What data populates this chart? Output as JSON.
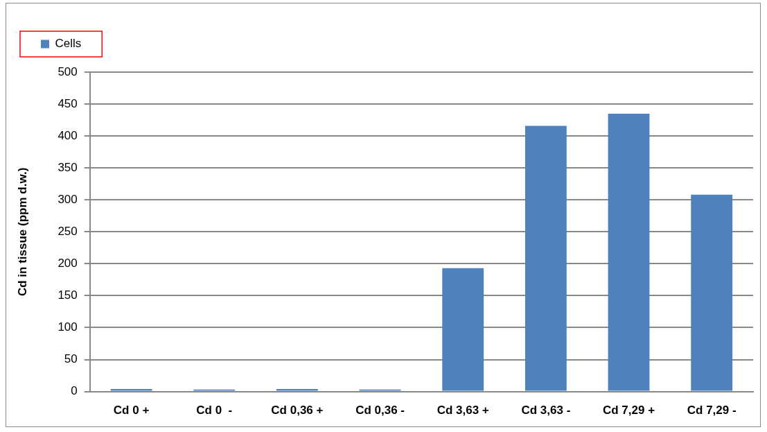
{
  "chart_data": {
    "type": "bar",
    "ylabel": "Cd in tissue (ppm d.w.)",
    "categories": [
      "Cd 0 +",
      "Cd 0  -",
      "Cd 0,36 +",
      "Cd 0,36 -",
      "Cd 3,63 +",
      "Cd 3,63 -",
      "Cd 7,29 +",
      "Cd 7,29 -"
    ],
    "series": [
      {
        "name": "Cells",
        "color": "#4f81bd",
        "values": [
          4,
          3,
          4,
          3,
          193,
          416,
          435,
          308
        ]
      }
    ],
    "ylim": [
      0,
      500
    ],
    "yticks": [
      0,
      50,
      100,
      150,
      200,
      250,
      300,
      350,
      400,
      450,
      500
    ],
    "grid": "y",
    "legend": "top left"
  }
}
